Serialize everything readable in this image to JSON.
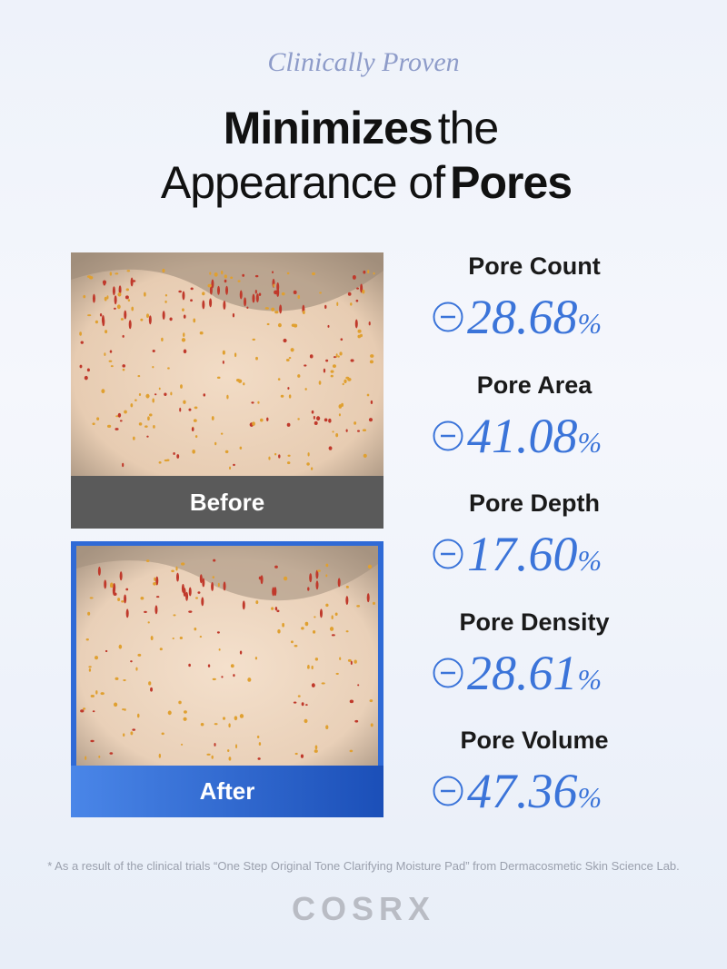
{
  "header": {
    "eyebrow": "Clinically Proven",
    "line1": {
      "bold": "Minimizes",
      "regular": "the"
    },
    "line2": {
      "regular": "Appearance of",
      "bold": "Pores"
    }
  },
  "photos": [
    {
      "label": "Before"
    },
    {
      "label": "After"
    }
  ],
  "stats": [
    {
      "label": "Pore Count",
      "value": "28.68",
      "unit": "%"
    },
    {
      "label": "Pore Area",
      "value": "41.08",
      "unit": "%"
    },
    {
      "label": "Pore Depth",
      "value": "17.60",
      "unit": "%"
    },
    {
      "label": "Pore Density",
      "value": "28.61",
      "unit": "%"
    },
    {
      "label": "Pore Volume",
      "value": "47.36",
      "unit": "%"
    }
  ],
  "footnote": "* As a result of the clinical trials “One Step Original Tone Clarifying Moisture Pad” from Dermacosmetic Skin Science Lab.",
  "brand": "COSRX"
}
